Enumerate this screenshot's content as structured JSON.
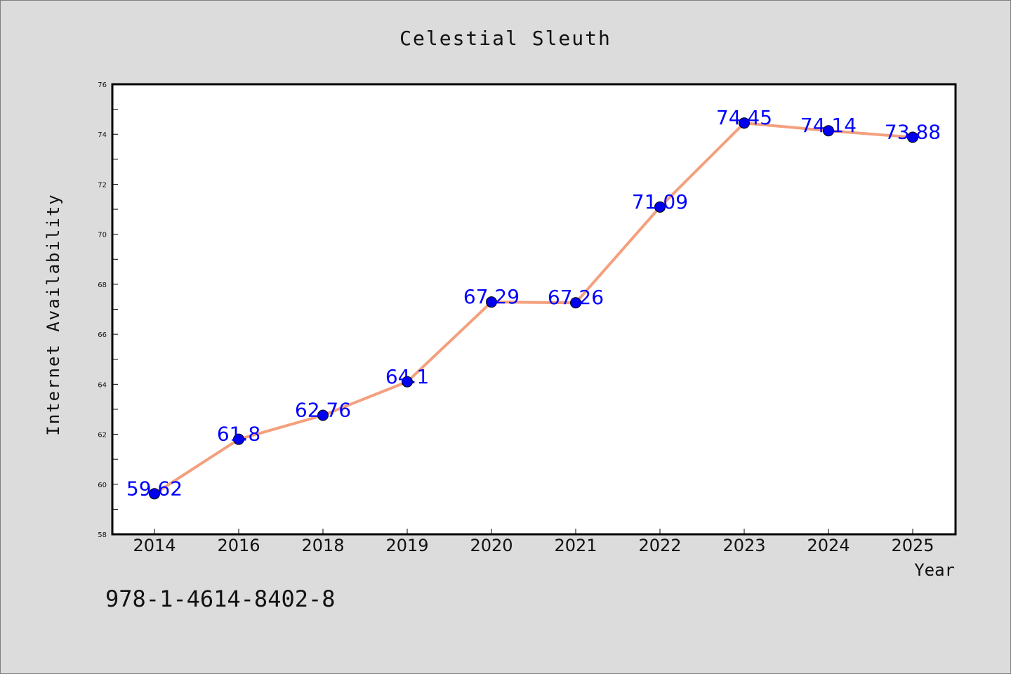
{
  "chart_data": {
    "type": "line",
    "title": "Celestial Sleuth",
    "xlabel": "Year",
    "ylabel": "Internet Availability",
    "categories": [
      "2014",
      "2016",
      "2018",
      "2019",
      "2020",
      "2021",
      "2022",
      "2023",
      "2024",
      "2025"
    ],
    "series": [
      {
        "values": [
          59.62,
          61.8,
          62.76,
          64.1,
          67.29,
          67.26,
          71.09,
          74.45,
          74.14,
          73.88
        ],
        "labels": [
          "59.62",
          "61.8",
          "62.76",
          "64.1",
          "67.29",
          "67.26",
          "71.09",
          "74.45",
          "74.14",
          "73.88"
        ],
        "line_color": "#f4a07e",
        "marker_color": "#0000ee"
      }
    ],
    "ylim": [
      58,
      76
    ],
    "yticks": [
      "58",
      "60",
      "62",
      "64",
      "66",
      "68",
      "70",
      "72",
      "74",
      "76"
    ],
    "grid": false,
    "legend": "none",
    "label_color": "#0000ff"
  },
  "annotation": "978-1-4614-8402-8"
}
